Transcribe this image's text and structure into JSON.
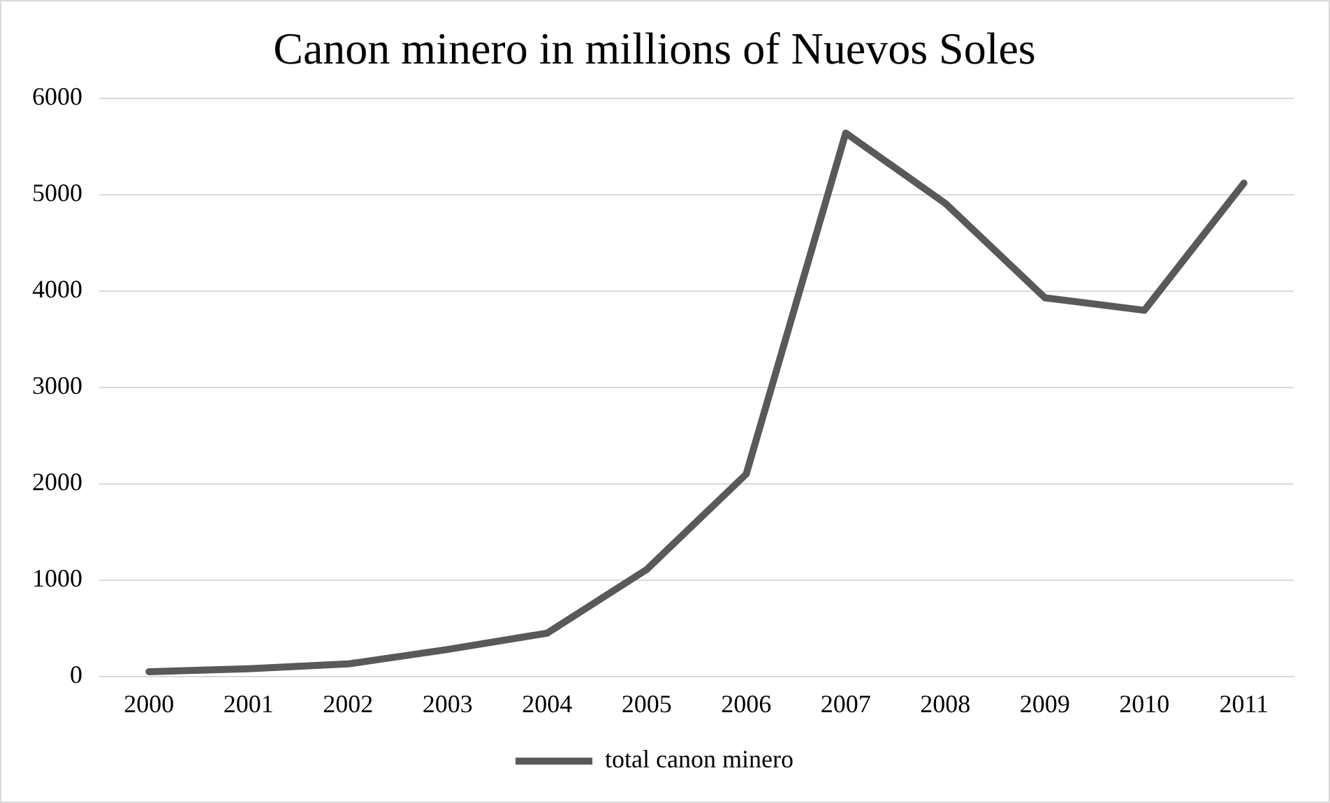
{
  "chart_data": {
    "type": "line",
    "title": "Canon minero in millions of Nuevos Soles",
    "categories": [
      "2000",
      "2001",
      "2002",
      "2003",
      "2004",
      "2005",
      "2006",
      "2007",
      "2008",
      "2009",
      "2010",
      "2011"
    ],
    "series": [
      {
        "name": "total canon minero",
        "color": "#595959",
        "values": [
          50,
          80,
          130,
          280,
          450,
          1110,
          2100,
          5640,
          4910,
          3930,
          3800,
          5120
        ]
      }
    ],
    "ylim": [
      0,
      6000
    ],
    "yticks": [
      0,
      1000,
      2000,
      3000,
      4000,
      5000,
      6000
    ],
    "grid": "y",
    "legend": "bottom",
    "marker": "none",
    "line_style": "solid"
  }
}
